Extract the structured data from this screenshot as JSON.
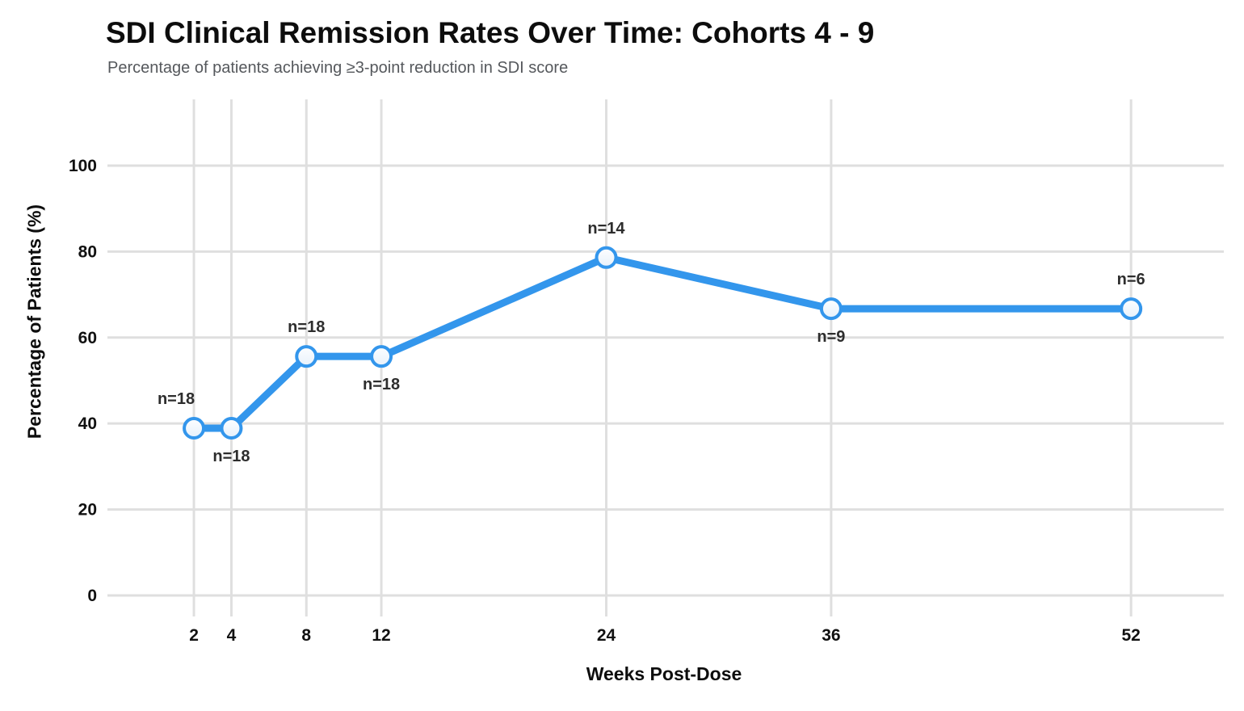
{
  "header": {
    "title": "SDI Clinical Remission Rates Over Time: Cohorts 4 - 9",
    "subtitle": "Percentage of patients achieving ≥3-point reduction in SDI score"
  },
  "chart_data": {
    "type": "line",
    "title": "SDI Clinical Remission Rates Over Time: Cohorts 4 - 9",
    "subtitle": "Percentage of patients achieving ≥3-point reduction in SDI score",
    "xlabel": "Weeks Post-Dose",
    "ylabel": "Percentage of Patients (%)",
    "x": [
      2,
      4,
      8,
      12,
      24,
      36,
      52
    ],
    "y": [
      38.9,
      38.9,
      55.6,
      55.6,
      78.6,
      66.7,
      66.7
    ],
    "point_labels": [
      {
        "text": "n=18",
        "pos": "above",
        "dx": -22
      },
      {
        "text": "n=18",
        "pos": "below",
        "dx": 0
      },
      {
        "text": "n=18",
        "pos": "above",
        "dx": 0
      },
      {
        "text": "n=18",
        "pos": "below",
        "dx": 0
      },
      {
        "text": "n=14",
        "pos": "above",
        "dx": 0
      },
      {
        "text": "n=9",
        "pos": "below",
        "dx": 0
      },
      {
        "text": "n=6",
        "pos": "above",
        "dx": 0
      }
    ],
    "x_ticks": [
      2,
      4,
      8,
      12,
      24,
      36,
      52
    ],
    "y_ticks": [
      0,
      20,
      40,
      60,
      80,
      100
    ],
    "xlim": [
      -1.45,
      56.95
    ],
    "ylim": [
      0,
      115.4
    ],
    "grid": true,
    "legend": "none",
    "colors": {
      "line": "#3396EC",
      "marker_fill_top": "#FDFEFF",
      "marker_fill_bottom": "#E7F1FB",
      "grid": "#DFDFDF",
      "tick_text": "#111111",
      "point_label_text": "#2D2D2D",
      "title_text": "#0D0D0D",
      "subtitle_text": "#55585C"
    }
  }
}
